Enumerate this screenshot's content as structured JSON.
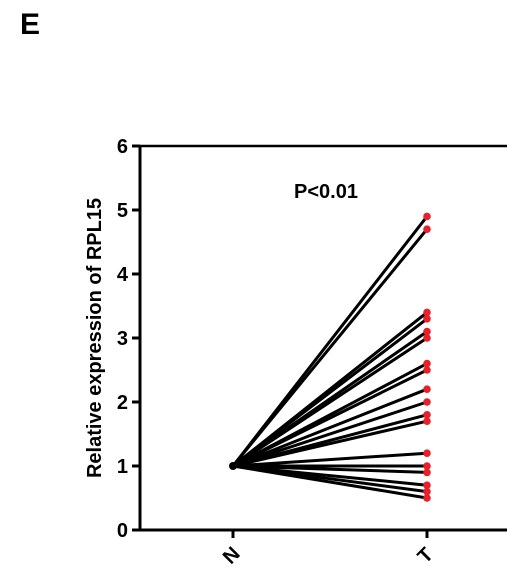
{
  "panel_label": "E",
  "chart_data": {
    "type": "line",
    "style": "paired before-after plot",
    "ylabel": "Relative expression of RPL15",
    "xlabel": "",
    "annotation": "P<0.01",
    "categories": [
      "N",
      "T"
    ],
    "ylim": [
      0,
      6
    ],
    "yticks": [
      "0",
      "1",
      "2",
      "3",
      "4",
      "5",
      "6"
    ],
    "grid": false,
    "normal_value": 1.0,
    "tumor_values": [
      4.9,
      4.7,
      3.4,
      3.3,
      3.1,
      3.0,
      2.6,
      2.5,
      2.2,
      2.0,
      1.8,
      1.7,
      1.2,
      1.0,
      0.9,
      0.7,
      0.6,
      0.5
    ],
    "colors": {
      "line": "#000000",
      "normal_point": "#000000",
      "tumor_point": "#e8202a"
    }
  }
}
